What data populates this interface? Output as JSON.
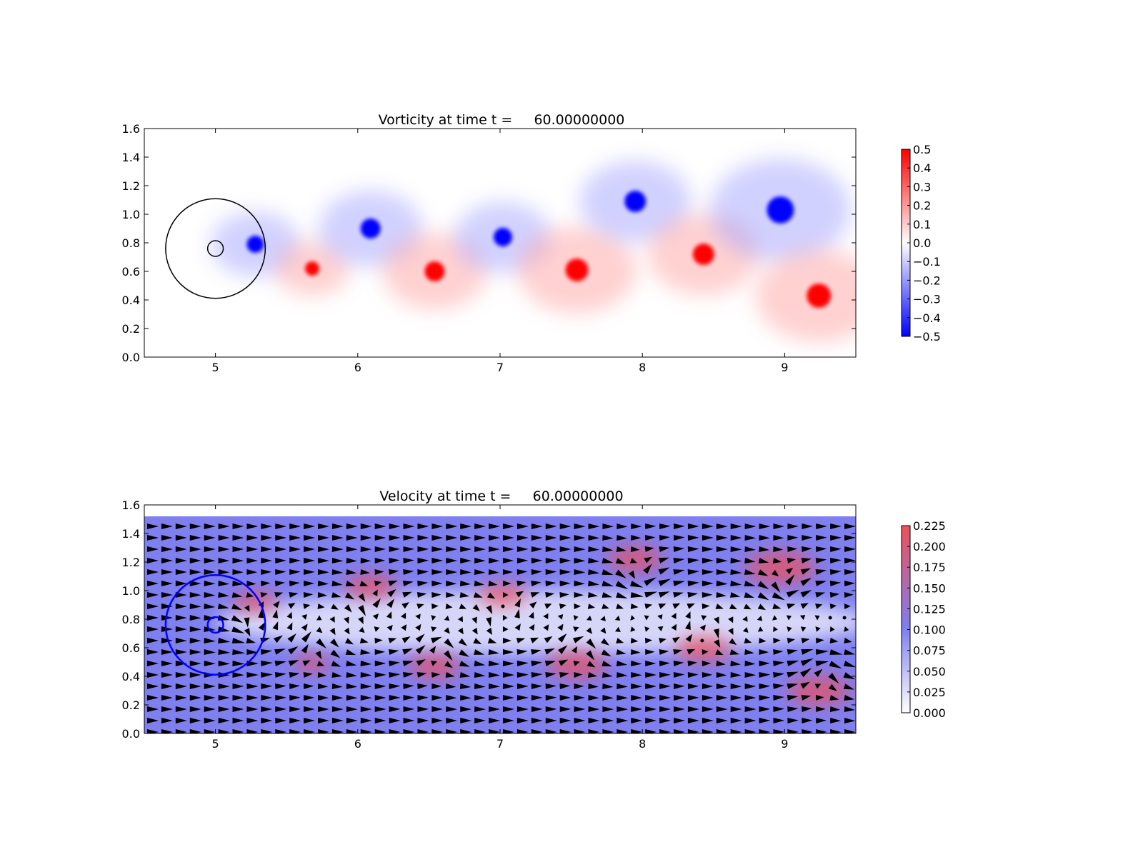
{
  "figure": {
    "background": "#ffffff"
  },
  "chart_data": [
    {
      "type": "heatmap",
      "title": "Vorticity at time t =     60.00000000",
      "xlabel": "",
      "ylabel": "",
      "xlim": [
        4.5,
        9.5
      ],
      "ylim": [
        0.0,
        1.6
      ],
      "xticks": [
        "5",
        "6",
        "7",
        "8",
        "9"
      ],
      "yticks": [
        "0.0",
        "0.2",
        "0.4",
        "0.6",
        "0.8",
        "1.0",
        "1.2",
        "1.4",
        "1.6"
      ],
      "grid": false,
      "colormap": "bwr",
      "colorbar": {
        "range": [
          -0.5,
          0.5
        ],
        "ticks": [
          "0.5",
          "0.4",
          "0.3",
          "0.2",
          "0.1",
          "0.0",
          "−0.1",
          "−0.2",
          "−0.3",
          "−0.4",
          "−0.5"
        ],
        "colors": {
          "min": "#0000ff",
          "mid": "#ffffff",
          "max": "#ff0000"
        }
      },
      "vortices": [
        {
          "x": 5.28,
          "y": 0.79,
          "r": 0.12,
          "sign": -1
        },
        {
          "x": 5.68,
          "y": 0.62,
          "r": 0.1,
          "sign": 1
        },
        {
          "x": 6.09,
          "y": 0.9,
          "r": 0.14,
          "sign": -1
        },
        {
          "x": 6.54,
          "y": 0.6,
          "r": 0.14,
          "sign": 1
        },
        {
          "x": 7.02,
          "y": 0.84,
          "r": 0.13,
          "sign": -1
        },
        {
          "x": 7.54,
          "y": 0.61,
          "r": 0.16,
          "sign": 1
        },
        {
          "x": 7.95,
          "y": 1.09,
          "r": 0.15,
          "sign": -1
        },
        {
          "x": 8.43,
          "y": 0.72,
          "r": 0.15,
          "sign": 1
        },
        {
          "x": 8.97,
          "y": 1.03,
          "r": 0.19,
          "sign": -1
        },
        {
          "x": 9.24,
          "y": 0.43,
          "r": 0.17,
          "sign": 1
        }
      ],
      "annotations": [
        {
          "shape": "circle",
          "x": 5.0,
          "y": 0.76,
          "r": 0.35,
          "color": "#000000"
        },
        {
          "shape": "circle",
          "x": 5.0,
          "y": 0.76,
          "r": 0.055,
          "color": "#000000"
        }
      ]
    },
    {
      "type": "heatmap",
      "title": "Velocity at time t =     60.00000000",
      "xlabel": "",
      "ylabel": "",
      "xlim": [
        4.5,
        9.5
      ],
      "ylim": [
        0.0,
        1.6
      ],
      "xticks": [
        "5",
        "6",
        "7",
        "8",
        "9"
      ],
      "yticks": [
        "0.0",
        "0.2",
        "0.4",
        "0.6",
        "0.8",
        "1.0",
        "1.2",
        "1.4",
        "1.6"
      ],
      "grid": false,
      "quiver": true,
      "field_ymax": 1.52,
      "colorbar": {
        "range": [
          0.0,
          0.225
        ],
        "ticks": [
          "0.225",
          "0.200",
          "0.175",
          "0.150",
          "0.125",
          "0.100",
          "0.075",
          "0.050",
          "0.025",
          "0.000"
        ],
        "colors": {
          "min": "#ffffff",
          "mid": "#7f7ff0",
          "max": "#f0505a"
        }
      },
      "annotations": [
        {
          "shape": "circle",
          "x": 5.0,
          "y": 0.76,
          "r": 0.35,
          "color": "#0000ff"
        },
        {
          "shape": "circle",
          "x": 5.0,
          "y": 0.76,
          "r": 0.055,
          "color": "#0000ff"
        }
      ]
    }
  ]
}
